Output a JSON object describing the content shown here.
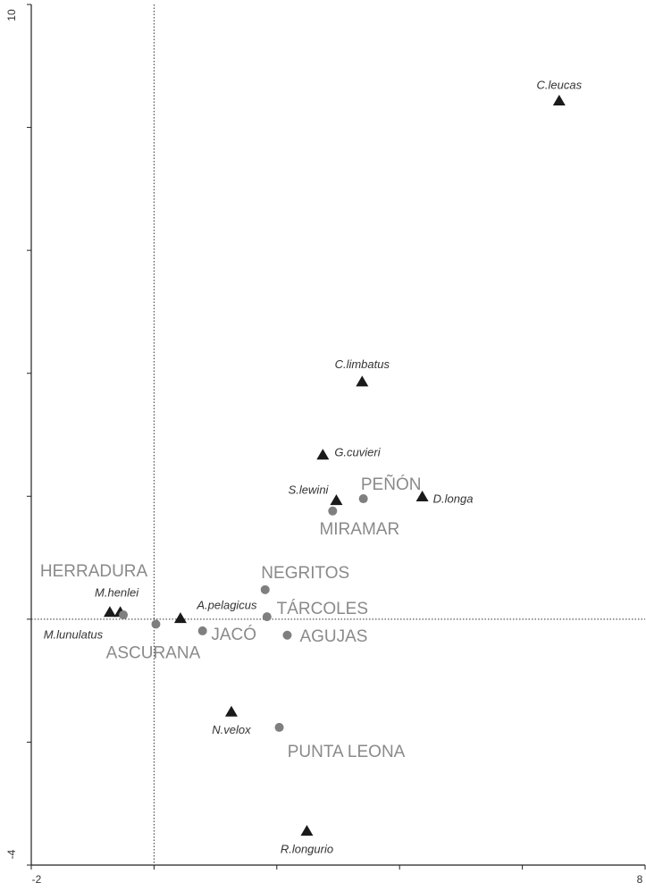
{
  "chart_data": {
    "type": "scatter",
    "xlim": [
      -2,
      8
    ],
    "ylim": [
      -4,
      10
    ],
    "xticks": [
      -2,
      8
    ],
    "yticks": [
      -4,
      10
    ],
    "x_minor_ticks": [
      0,
      2,
      4,
      6
    ],
    "y_minor_ticks": [
      -2,
      0,
      2,
      4,
      6,
      8
    ],
    "zero_lines": true,
    "series": [
      {
        "marker": "triangle",
        "color": "#1a1a1a",
        "labels": [
          "C.leucas",
          "C.limbatus",
          "G.cuvieri",
          "S.lewini",
          "D.longa",
          "M.henlei",
          "M.lunulatus",
          "A.pelagicus",
          "N.velox",
          "R.longurio"
        ],
        "x": [
          6.6,
          3.39,
          2.75,
          2.97,
          4.37,
          -0.55,
          -0.72,
          0.43,
          1.26,
          2.49
        ],
        "values": [
          8.43,
          3.86,
          2.67,
          1.93,
          1.99,
          0.11,
          0.11,
          0.01,
          -1.51,
          -3.45
        ]
      },
      {
        "marker": "circle",
        "color": "#7f7f7f",
        "labels": [
          "PEÑÓN",
          "MIRAMAR",
          "NEGRITOS",
          "TÁRCOLES",
          "AGUJAS",
          "JACÓ",
          "ASCURANA",
          "HERRADURA",
          "PUNTA LEONA"
        ],
        "x": [
          3.41,
          2.91,
          1.81,
          1.84,
          2.17,
          0.79,
          0.03,
          -0.5,
          2.04
        ],
        "values": [
          1.96,
          1.76,
          0.48,
          0.04,
          -0.26,
          -0.19,
          -0.08,
          0.07,
          -1.76
        ]
      }
    ]
  }
}
